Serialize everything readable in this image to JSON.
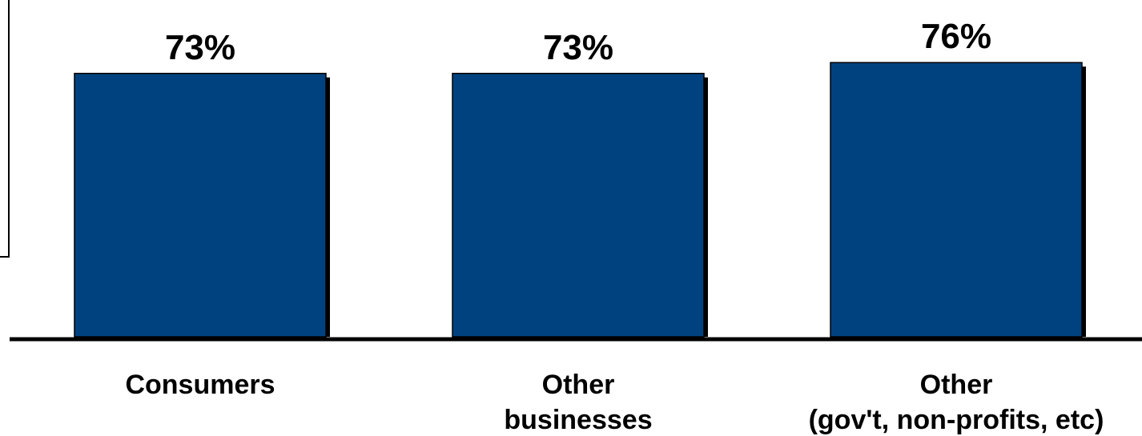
{
  "chart_data": {
    "type": "bar",
    "categories": [
      [
        "Consumers"
      ],
      [
        "Other",
        "businesses"
      ],
      [
        "Other",
        "(gov't, non-profits, etc)"
      ]
    ],
    "values": [
      73,
      73,
      76
    ],
    "data_labels": [
      "73%",
      "73%",
      "76%"
    ],
    "title": "",
    "xlabel": "",
    "ylabel": "",
    "grid": false,
    "legend": "none",
    "colors": {
      "bar": "#00427f",
      "shadow": "#000000",
      "axis": "#000000"
    }
  }
}
